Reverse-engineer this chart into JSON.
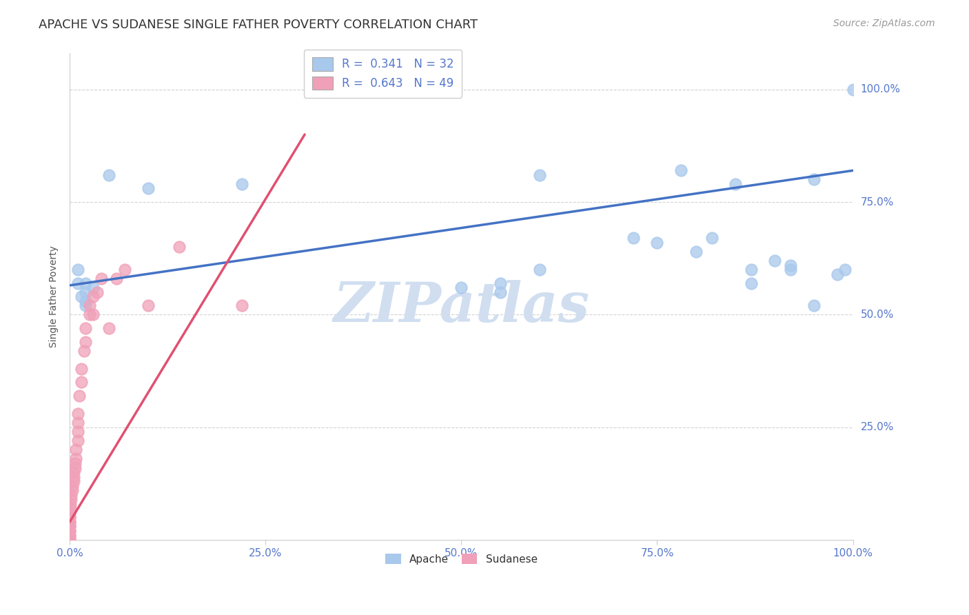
{
  "title": "APACHE VS SUDANESE SINGLE FATHER POVERTY CORRELATION CHART",
  "source": "Source: ZipAtlas.com",
  "ylabel": "Single Father Poverty",
  "xlim": [
    0.0,
    1.0
  ],
  "ylim": [
    0.0,
    1.08
  ],
  "apache_color": "#A8C8EC",
  "sudanese_color": "#F0A0B8",
  "apache_line_color": "#4472C4",
  "sudanese_line_color": "#E05070",
  "apache_R": 0.341,
  "apache_N": 32,
  "sudanese_R": 0.643,
  "sudanese_N": 49,
  "watermark": "ZIPatlas",
  "watermark_color": "#D0DEF0",
  "apache_x": [
    0.01,
    0.01,
    0.015,
    0.02,
    0.02,
    0.02,
    0.02,
    0.03,
    0.05,
    0.1,
    0.22,
    0.55,
    0.55,
    0.6,
    0.72,
    0.8,
    0.82,
    0.87,
    0.87,
    0.9,
    0.92,
    0.92,
    0.95,
    0.98,
    0.99,
    1.0,
    0.75,
    0.78,
    0.5,
    0.6,
    0.85,
    0.95
  ],
  "apache_y": [
    0.57,
    0.6,
    0.54,
    0.57,
    0.55,
    0.53,
    0.52,
    0.56,
    0.81,
    0.78,
    0.79,
    0.57,
    0.55,
    0.6,
    0.67,
    0.64,
    0.67,
    0.57,
    0.6,
    0.62,
    0.6,
    0.61,
    0.52,
    0.59,
    0.6,
    1.0,
    0.66,
    0.82,
    0.56,
    0.81,
    0.79,
    0.8
  ],
  "sudanese_x": [
    0.0,
    0.0,
    0.0,
    0.0,
    0.0,
    0.0,
    0.0,
    0.0,
    0.0,
    0.0,
    0.0,
    0.0,
    0.0,
    0.0,
    0.001,
    0.001,
    0.002,
    0.002,
    0.003,
    0.003,
    0.005,
    0.005,
    0.005,
    0.007,
    0.007,
    0.008,
    0.008,
    0.01,
    0.01,
    0.01,
    0.01,
    0.012,
    0.015,
    0.015,
    0.018,
    0.02,
    0.02,
    0.025,
    0.025,
    0.03,
    0.03,
    0.035,
    0.04,
    0.05,
    0.06,
    0.07,
    0.1,
    0.14,
    0.22
  ],
  "sudanese_y": [
    0.0,
    0.0,
    0.0,
    0.01,
    0.01,
    0.02,
    0.02,
    0.03,
    0.03,
    0.04,
    0.04,
    0.05,
    0.05,
    0.06,
    0.07,
    0.08,
    0.09,
    0.1,
    0.11,
    0.12,
    0.13,
    0.14,
    0.15,
    0.16,
    0.17,
    0.18,
    0.2,
    0.22,
    0.24,
    0.26,
    0.28,
    0.32,
    0.35,
    0.38,
    0.42,
    0.44,
    0.47,
    0.5,
    0.52,
    0.54,
    0.5,
    0.55,
    0.58,
    0.47,
    0.58,
    0.6,
    0.52,
    0.65,
    0.52
  ],
  "apache_line_x0": 0.0,
  "apache_line_y0": 0.565,
  "apache_line_x1": 1.0,
  "apache_line_y1": 0.82,
  "sudanese_line_x0": 0.0,
  "sudanese_line_y0": 0.04,
  "sudanese_line_x1": 0.3,
  "sudanese_line_y1": 0.9,
  "xtick_labels": [
    "0.0%",
    "25.0%",
    "50.0%",
    "75.0%",
    "100.0%"
  ],
  "xtick_vals": [
    0.0,
    0.25,
    0.5,
    0.75,
    1.0
  ],
  "ytick_labels": [
    "25.0%",
    "50.0%",
    "75.0%",
    "100.0%"
  ],
  "ytick_vals": [
    0.25,
    0.5,
    0.75,
    1.0
  ],
  "grid_color": "#CCCCCC",
  "background_color": "#FFFFFF",
  "title_color": "#333333",
  "tick_label_color": "#5577CC",
  "legend1_label1": "R =  0.341   N = 32",
  "legend1_label2": "R =  0.643   N = 49",
  "legend2_label1": "Apache",
  "legend2_label2": "Sudanese"
}
